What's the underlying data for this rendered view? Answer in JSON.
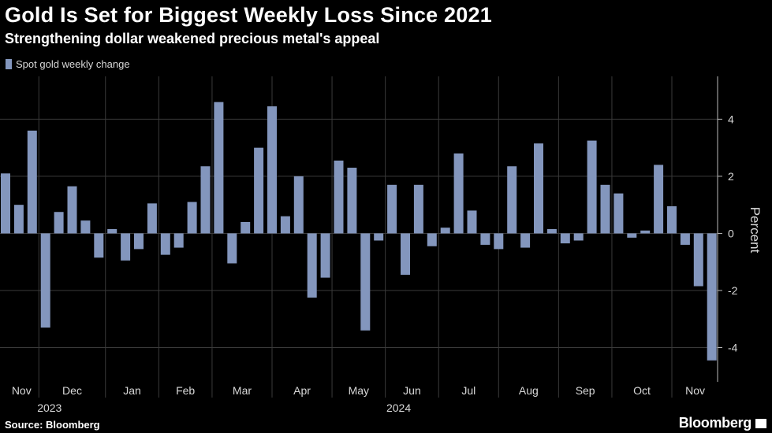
{
  "header": {
    "title": "Gold Is Set for Biggest Weekly Loss Since 2021",
    "subtitle": "Strengthening dollar weakened precious metal's appeal"
  },
  "footer": {
    "source": "Source: Bloomberg",
    "brand": "Bloomberg"
  },
  "colors": {
    "background": "#000000",
    "bar": "#8396bd",
    "grid": "#3a3a3a",
    "text": "#d8d8d8"
  },
  "chart_data": {
    "type": "bar",
    "title": "Gold Is Set for Biggest Weekly Loss Since 2021",
    "subtitle": "Strengthening dollar weakened precious metal's appeal",
    "ylabel": "Percent",
    "xlabel": "",
    "ylim": [
      -5.2,
      5.5
    ],
    "yticks": [
      -4,
      -2,
      0,
      2,
      4
    ],
    "legend": "top-left",
    "grid": true,
    "month_labels": [
      "Nov",
      "Dec",
      "Jan",
      "Feb",
      "Mar",
      "Apr",
      "May",
      "Jun",
      "Jul",
      "Aug",
      "Sep",
      "Oct",
      "Nov"
    ],
    "year_labels": [
      "2023",
      "2024"
    ],
    "series": [
      {
        "name": "Spot gold weekly change",
        "values": [
          2.1,
          1.0,
          3.6,
          -3.3,
          0.75,
          1.65,
          0.45,
          -0.85,
          0.15,
          -0.95,
          -0.55,
          1.05,
          -0.75,
          -0.5,
          1.1,
          2.35,
          4.6,
          -1.05,
          0.4,
          3.0,
          4.45,
          0.6,
          2.0,
          -2.25,
          -1.55,
          2.55,
          2.3,
          -3.4,
          -0.25,
          1.7,
          -1.45,
          1.7,
          -0.45,
          0.2,
          2.8,
          0.8,
          -0.4,
          -0.55,
          2.35,
          -0.5,
          3.15,
          0.15,
          -0.35,
          -0.25,
          3.25,
          1.7,
          1.4,
          -0.15,
          0.1,
          2.4,
          0.95,
          -0.4,
          -1.85,
          -4.45
        ]
      }
    ]
  }
}
